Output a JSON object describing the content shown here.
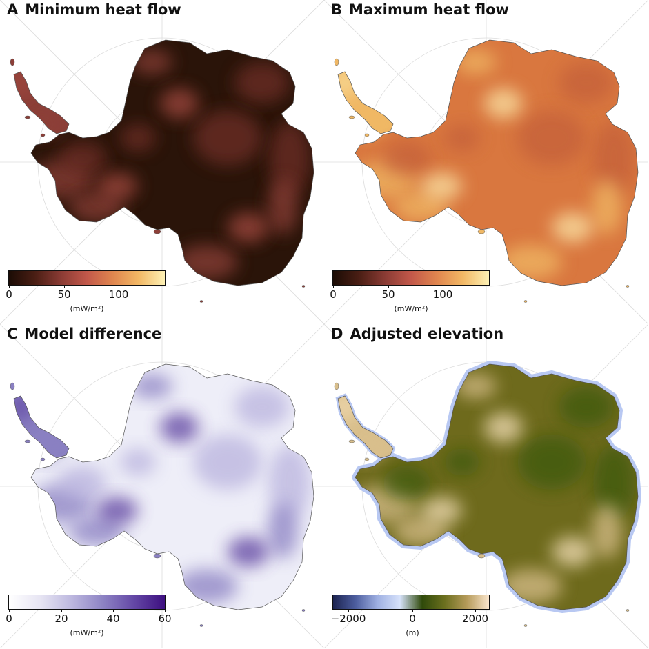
{
  "panels": [
    {
      "letter": "A",
      "title": "Minimum heat flow",
      "colorbar": {
        "colors": [
          "#1b0c05",
          "#4a1e14",
          "#8a3b34",
          "#c2584a",
          "#e0864f",
          "#f2b865",
          "#fdf1b5"
        ],
        "ticks": [
          "0",
          "50",
          "100"
        ],
        "unit": "(mW/m²)"
      },
      "map": {
        "land": "#2a1409",
        "patches": [
          "#8c3f38",
          "#6e2f28",
          "#a34a41"
        ],
        "shelf": "#ffffff"
      }
    },
    {
      "letter": "B",
      "title": "Maximum heat flow",
      "colorbar": {
        "colors": [
          "#1b0c05",
          "#4a1e14",
          "#8a3b34",
          "#c2584a",
          "#e0864f",
          "#f2b865",
          "#fdf1b5"
        ],
        "ticks": [
          "0",
          "50",
          "100"
        ],
        "unit": "(mW/m²)"
      },
      "map": {
        "land": "#d9773f",
        "patches": [
          "#f0b865",
          "#c4613a",
          "#fbe4a5"
        ],
        "shelf": "#ffffff"
      }
    },
    {
      "letter": "C",
      "title": "Model difference",
      "colorbar": {
        "colors": [
          "#ffffff",
          "#e7e5f3",
          "#bdb8df",
          "#8e84c4",
          "#6448a6",
          "#3d0f80"
        ],
        "ticks": [
          "0",
          "20",
          "40",
          "60"
        ],
        "unit": "(mW/m²)"
      },
      "map": {
        "land": "#eeeef8",
        "patches": [
          "#8a80c2",
          "#b9b3de",
          "#5a3c9e"
        ],
        "shelf": "#ffffff"
      }
    },
    {
      "letter": "D",
      "title": "Adjusted elevation",
      "colorbar": {
        "colors": [
          "#1c2350",
          "#4c5d9e",
          "#9fb0e2",
          "#d7e2fb",
          "#2f4a0a",
          "#6b6f1e",
          "#b59a59",
          "#fbe6cd"
        ],
        "ticks": [
          "−2000",
          "0",
          "2000"
        ],
        "unit": "(m)"
      },
      "map": {
        "land": "#6e6a1c",
        "patches": [
          "#d9bf8c",
          "#3e5a0d",
          "#f4dfb8"
        ],
        "shelf": "#b8c8f2"
      }
    }
  ]
}
